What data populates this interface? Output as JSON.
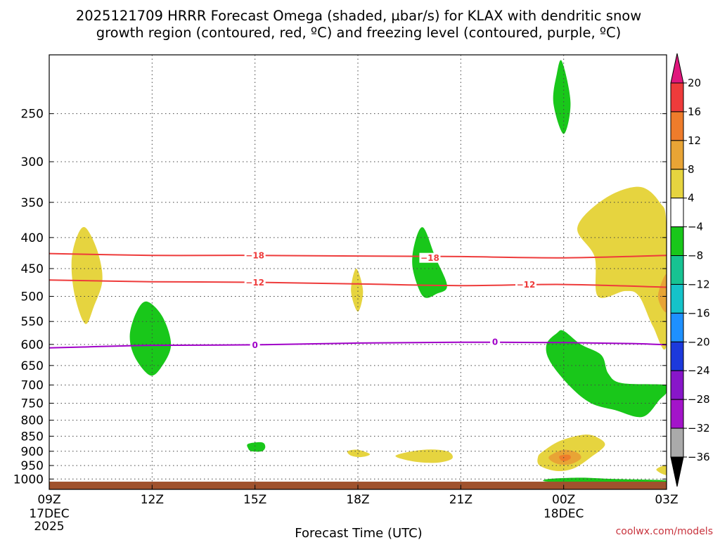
{
  "chart_data": {
    "type": "time-height",
    "title_lines": [
      "2025121709 HRRR Forecast Omega (shaded, µbar/s) for KLAX with dendritic snow",
      "growth region (contoured, red, ºC) and freezing level (contoured, purple, ºC)"
    ],
    "xlabel": "Forecast Time (UTC)",
    "credit": "coolwx.com/models",
    "x_ticks": [
      {
        "hour": 0,
        "label": "09Z",
        "sub": [
          "17DEC",
          "2025"
        ]
      },
      {
        "hour": 3,
        "label": "12Z",
        "sub": []
      },
      {
        "hour": 6,
        "label": "15Z",
        "sub": []
      },
      {
        "hour": 9,
        "label": "18Z",
        "sub": []
      },
      {
        "hour": 12,
        "label": "21Z",
        "sub": []
      },
      {
        "hour": 15,
        "label": "00Z",
        "sub": [
          "18DEC"
        ]
      },
      {
        "hour": 18,
        "label": "03Z",
        "sub": []
      }
    ],
    "x_range_hours": [
      0,
      18
    ],
    "y_axis": "pressure (hPa), log scale, decreasing upward",
    "y_range": [
      1040,
      200
    ],
    "y_ticks": [
      250,
      300,
      350,
      400,
      450,
      500,
      550,
      600,
      650,
      700,
      750,
      800,
      850,
      900,
      950,
      1000
    ],
    "grid": "dotted",
    "colorbar": {
      "labels": [
        20,
        16,
        12,
        8,
        4,
        -4,
        -8,
        -12,
        -16,
        -20,
        -24,
        -28,
        -32,
        -36
      ],
      "colors_top_to_bottom": [
        "#e0177d",
        "#ee3b3b",
        "#ee7c2b",
        "#e8a435",
        "#e6d43f",
        "#ffffff",
        "#19c71a",
        "#17c392",
        "#15c3c9",
        "#1e90ff",
        "#1c39dc",
        "#8816c9",
        "#a314c9",
        "#aaaaaa",
        "#000000"
      ]
    },
    "contours": [
      {
        "name": "-18",
        "color": "#ee3b3b",
        "points": [
          [
            0,
            425
          ],
          [
            3,
            428
          ],
          [
            6,
            428
          ],
          [
            9,
            429
          ],
          [
            12,
            430
          ],
          [
            15,
            432
          ],
          [
            18,
            428
          ]
        ],
        "labels": [
          [
            6.0,
            428
          ],
          [
            11.1,
            432
          ]
        ]
      },
      {
        "name": "-12",
        "color": "#ee3b3b",
        "points": [
          [
            0,
            470
          ],
          [
            3,
            473
          ],
          [
            6,
            474
          ],
          [
            9,
            477
          ],
          [
            12,
            480
          ],
          [
            15,
            478
          ],
          [
            18,
            483
          ]
        ],
        "labels": [
          [
            6.0,
            474
          ],
          [
            13.9,
            478
          ]
        ]
      },
      {
        "name": "0",
        "color": "#a000c8",
        "points": [
          [
            0,
            608
          ],
          [
            1,
            606
          ],
          [
            3,
            602
          ],
          [
            6,
            601
          ],
          [
            9,
            597
          ],
          [
            12,
            595
          ],
          [
            15,
            596
          ],
          [
            17,
            598
          ],
          [
            18,
            601
          ]
        ],
        "labels": [
          [
            6.0,
            601
          ],
          [
            13.0,
            594
          ]
        ]
      }
    ],
    "shaded_regions": [
      {
        "value": 4,
        "color": "#e6d43f",
        "points": [
          [
            1.05,
            385
          ],
          [
            1.4,
            420
          ],
          [
            1.55,
            470
          ],
          [
            1.3,
            520
          ],
          [
            1.05,
            555
          ],
          [
            0.75,
            500
          ],
          [
            0.65,
            440
          ],
          [
            0.8,
            400
          ]
        ]
      },
      {
        "value": -4,
        "color": "#19c71a",
        "points": [
          [
            2.85,
            510
          ],
          [
            3.3,
            540
          ],
          [
            3.55,
            600
          ],
          [
            3.3,
            650
          ],
          [
            2.95,
            675
          ],
          [
            2.5,
            630
          ],
          [
            2.35,
            580
          ],
          [
            2.55,
            530
          ]
        ]
      },
      {
        "value": 4,
        "color": "#e6d43f",
        "points": [
          [
            8.95,
            450
          ],
          [
            9.15,
            490
          ],
          [
            9.0,
            530
          ],
          [
            8.8,
            490
          ]
        ]
      },
      {
        "value": -4,
        "color": "#19c71a",
        "points": [
          [
            10.9,
            385
          ],
          [
            11.25,
            430
          ],
          [
            11.6,
            480
          ],
          [
            11.3,
            495
          ],
          [
            10.9,
            500
          ],
          [
            10.6,
            450
          ],
          [
            10.65,
            410
          ]
        ]
      },
      {
        "value": -4,
        "color": "#19c71a",
        "points": [
          [
            14.95,
            205
          ],
          [
            15.2,
            240
          ],
          [
            15.0,
            270
          ],
          [
            14.7,
            240
          ],
          [
            14.8,
            215
          ]
        ]
      },
      {
        "value": 4,
        "color": "#e6d43f",
        "points": [
          [
            15.4,
            385
          ],
          [
            16.2,
            345
          ],
          [
            17.2,
            330
          ],
          [
            17.8,
            350
          ],
          [
            18.0,
            385
          ],
          [
            18.0,
            600
          ],
          [
            17.6,
            560
          ],
          [
            17.2,
            500
          ],
          [
            16.8,
            490
          ],
          [
            16.0,
            500
          ],
          [
            15.9,
            430
          ]
        ]
      },
      {
        "value": 8,
        "color": "#e8a435",
        "points": [
          [
            18.0,
            460
          ],
          [
            18.0,
            530
          ],
          [
            17.75,
            500
          ]
        ]
      },
      {
        "value": -4,
        "color": "#19c71a",
        "points": [
          [
            15.0,
            570
          ],
          [
            15.5,
            600
          ],
          [
            16.1,
            625
          ],
          [
            16.3,
            670
          ],
          [
            16.7,
            695
          ],
          [
            18.0,
            700
          ],
          [
            18.0,
            720
          ],
          [
            17.8,
            740
          ],
          [
            17.3,
            790
          ],
          [
            16.5,
            770
          ],
          [
            15.8,
            750
          ],
          [
            15.2,
            705
          ],
          [
            14.6,
            640
          ],
          [
            14.5,
            600
          ],
          [
            14.8,
            575
          ]
        ]
      },
      {
        "value": -4,
        "color": "#19c71a",
        "points": [
          [
            5.8,
            875
          ],
          [
            6.2,
            870
          ],
          [
            6.3,
            885
          ],
          [
            6.2,
            900
          ],
          [
            5.9,
            900
          ],
          [
            5.8,
            890
          ]
        ]
      },
      {
        "value": 4,
        "color": "#e6d43f",
        "points": [
          [
            8.7,
            900
          ],
          [
            9.0,
            895
          ],
          [
            9.35,
            910
          ],
          [
            9.1,
            920
          ],
          [
            8.8,
            915
          ]
        ]
      },
      {
        "value": 4,
        "color": "#e6d43f",
        "points": [
          [
            10.1,
            915
          ],
          [
            10.9,
            895
          ],
          [
            11.6,
            900
          ],
          [
            11.75,
            925
          ],
          [
            11.3,
            940
          ],
          [
            10.6,
            935
          ]
        ]
      },
      {
        "value": 4,
        "color": "#e6d43f",
        "points": [
          [
            14.4,
            900
          ],
          [
            14.9,
            865
          ],
          [
            15.6,
            845
          ],
          [
            16.0,
            855
          ],
          [
            16.2,
            880
          ],
          [
            15.8,
            920
          ],
          [
            15.3,
            960
          ],
          [
            14.8,
            970
          ],
          [
            14.3,
            950
          ],
          [
            14.25,
            920
          ]
        ]
      },
      {
        "value": 8,
        "color": "#e8a435",
        "points": [
          [
            14.6,
            915
          ],
          [
            15.0,
            895
          ],
          [
            15.4,
            905
          ],
          [
            15.5,
            925
          ],
          [
            15.2,
            945
          ],
          [
            14.85,
            945
          ],
          [
            14.6,
            930
          ]
        ]
      },
      {
        "value": 12,
        "color": "#ee7c2b",
        "points": [
          [
            14.9,
            915
          ],
          [
            15.15,
            912
          ],
          [
            15.2,
            925
          ],
          [
            15.0,
            935
          ],
          [
            14.88,
            925
          ]
        ]
      },
      {
        "value": 4,
        "color": "#e6d43f",
        "points": [
          [
            17.7,
            965
          ],
          [
            18.0,
            950
          ],
          [
            18.0,
            985
          ]
        ]
      },
      {
        "value": -4,
        "color": "#19c71a",
        "points": [
          [
            14.55,
            1000
          ],
          [
            15.5,
            995
          ],
          [
            16.5,
            1000
          ],
          [
            18.0,
            1005
          ],
          [
            18.0,
            1015
          ],
          [
            16.0,
            1012
          ],
          [
            14.55,
            1010
          ]
        ]
      }
    ],
    "ground": {
      "color": "#a0522d",
      "top_pressure": 1010,
      "bottom_pressure": 1040
    }
  }
}
